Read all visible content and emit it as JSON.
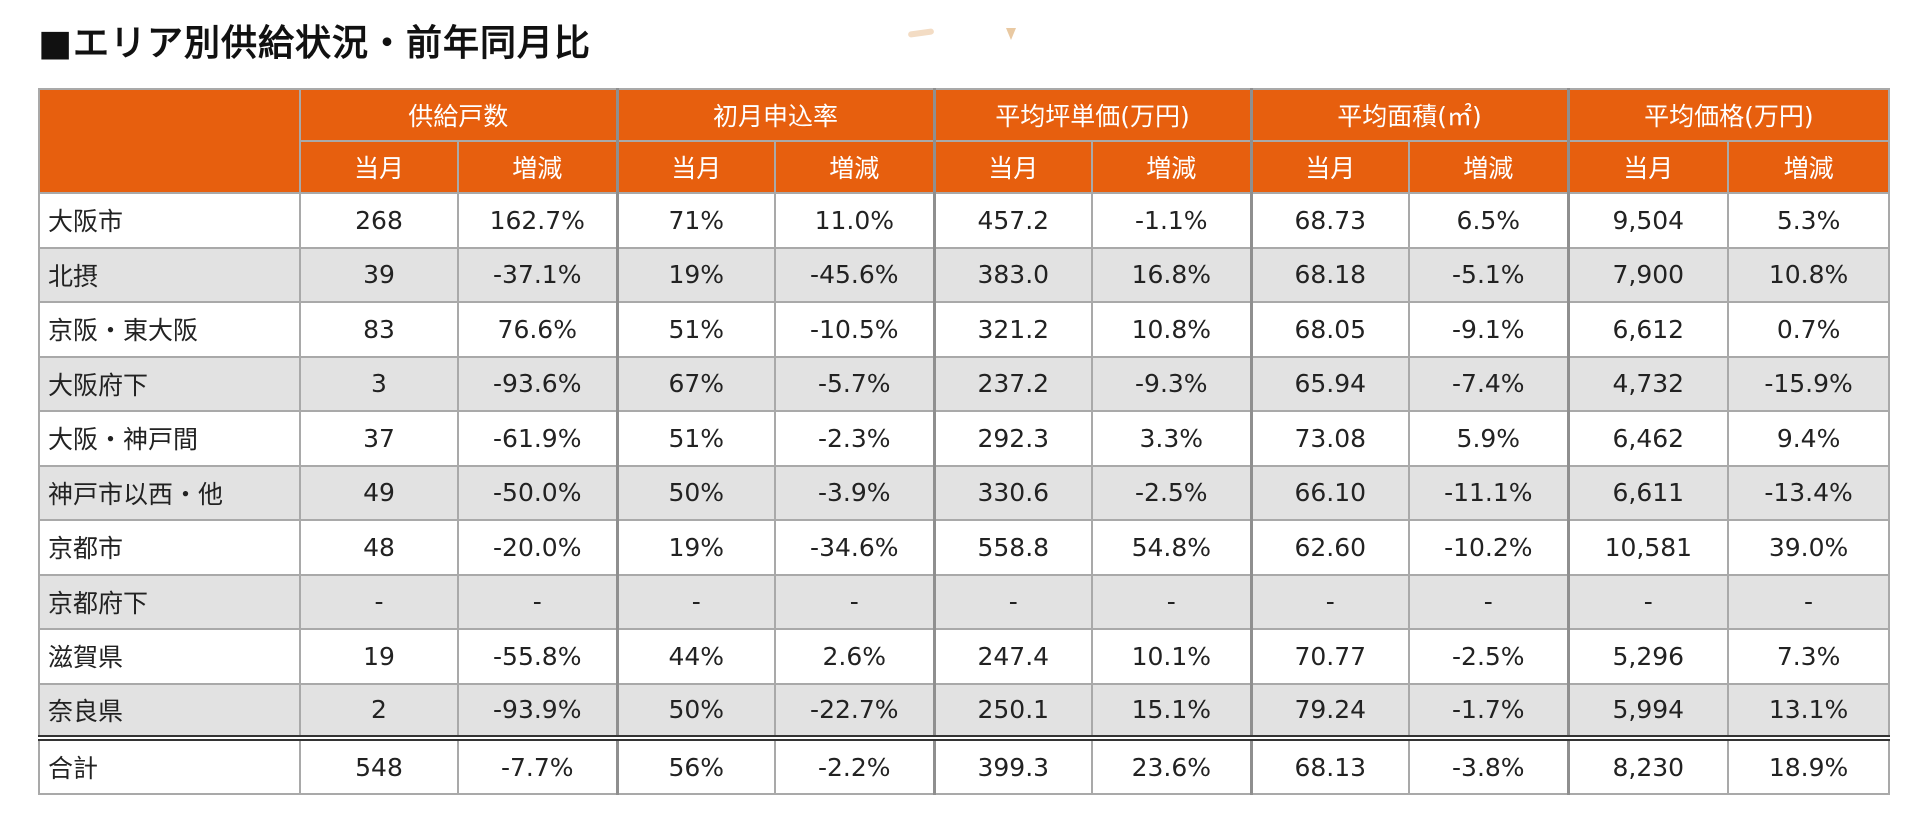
{
  "title": "■エリア別供給状況・前年同月比",
  "table": {
    "groups": [
      "供給戸数",
      "初月申込率",
      "平均坪単価(万円)",
      "平均面積(㎡)",
      "平均価格(万円)"
    ],
    "sub_current": "当月",
    "sub_change": "増減",
    "rows": [
      [
        "大阪市",
        "268",
        "162.7%",
        "71%",
        "11.0%",
        "457.2",
        "-1.1%",
        "68.73",
        "6.5%",
        "9,504",
        "5.3%"
      ],
      [
        "北摂",
        "39",
        "-37.1%",
        "19%",
        "-45.6%",
        "383.0",
        "16.8%",
        "68.18",
        "-5.1%",
        "7,900",
        "10.8%"
      ],
      [
        "京阪・東大阪",
        "83",
        "76.6%",
        "51%",
        "-10.5%",
        "321.2",
        "10.8%",
        "68.05",
        "-9.1%",
        "6,612",
        "0.7%"
      ],
      [
        "大阪府下",
        "3",
        "-93.6%",
        "67%",
        "-5.7%",
        "237.2",
        "-9.3%",
        "65.94",
        "-7.4%",
        "4,732",
        "-15.9%"
      ],
      [
        "大阪・神戸間",
        "37",
        "-61.9%",
        "51%",
        "-2.3%",
        "292.3",
        "3.3%",
        "73.08",
        "5.9%",
        "6,462",
        "9.4%"
      ],
      [
        "神戸市以西・他",
        "49",
        "-50.0%",
        "50%",
        "-3.9%",
        "330.6",
        "-2.5%",
        "66.10",
        "-11.1%",
        "6,611",
        "-13.4%"
      ],
      [
        "京都市",
        "48",
        "-20.0%",
        "19%",
        "-34.6%",
        "558.8",
        "54.8%",
        "62.60",
        "-10.2%",
        "10,581",
        "39.0%"
      ],
      [
        "京都府下",
        "-",
        "-",
        "-",
        "-",
        "-",
        "-",
        "-",
        "-",
        "-",
        "-"
      ],
      [
        "滋賀県",
        "19",
        "-55.8%",
        "44%",
        "2.6%",
        "247.4",
        "10.1%",
        "70.77",
        "-2.5%",
        "5,296",
        "7.3%"
      ],
      [
        "奈良県",
        "2",
        "-93.9%",
        "50%",
        "-22.7%",
        "250.1",
        "15.1%",
        "79.24",
        "-1.7%",
        "5,994",
        "13.1%"
      ]
    ],
    "total": [
      "合計",
      "548",
      "-7.7%",
      "56%",
      "-2.2%",
      "399.3",
      "23.6%",
      "68.13",
      "-3.8%",
      "8,230",
      "18.9%"
    ]
  }
}
